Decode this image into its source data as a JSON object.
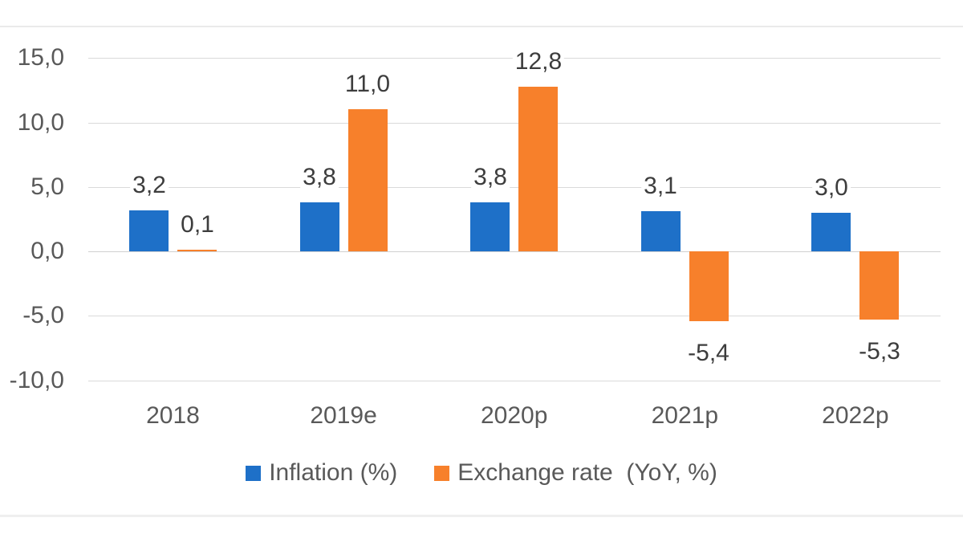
{
  "colors": {
    "background": "#ffffff",
    "gridline": "#dadada",
    "zero_line": "#d0d0d0",
    "frame_line": "#ededed",
    "axis_text": "#595959",
    "value_text": "#3d3d3d",
    "inflation_blue": "#1e70c8",
    "exchange_orange": "#f7802b"
  },
  "chart_data": {
    "type": "bar",
    "categories": [
      "2018",
      "2019e",
      "2020p",
      "2021p",
      "2022p"
    ],
    "series": [
      {
        "name": "Inflation (%)",
        "color": "#1e70c8",
        "values": [
          3.2,
          3.8,
          3.8,
          3.1,
          3.0
        ],
        "labels": [
          "3,2",
          "3,8",
          "3,8",
          "3,1",
          "3,0"
        ]
      },
      {
        "name": "Exchange rate  (YoY, %)",
        "color": "#f7802b",
        "values": [
          0.1,
          11.0,
          12.8,
          -5.4,
          -5.3
        ],
        "labels": [
          "0,1",
          "11,0",
          "12,8",
          "-5,4",
          "-5,3"
        ]
      }
    ],
    "y_ticks": [
      {
        "value": 15,
        "label": "15,0"
      },
      {
        "value": 10,
        "label": "10,0"
      },
      {
        "value": 5,
        "label": "5,0"
      },
      {
        "value": 0,
        "label": "0,0"
      },
      {
        "value": -5,
        "label": "-5,0"
      },
      {
        "value": -10,
        "label": "-10,0"
      }
    ],
    "ylim": [
      -10,
      15
    ],
    "grid": true,
    "legend_position": "bottom",
    "number_format": "decimal-comma"
  }
}
